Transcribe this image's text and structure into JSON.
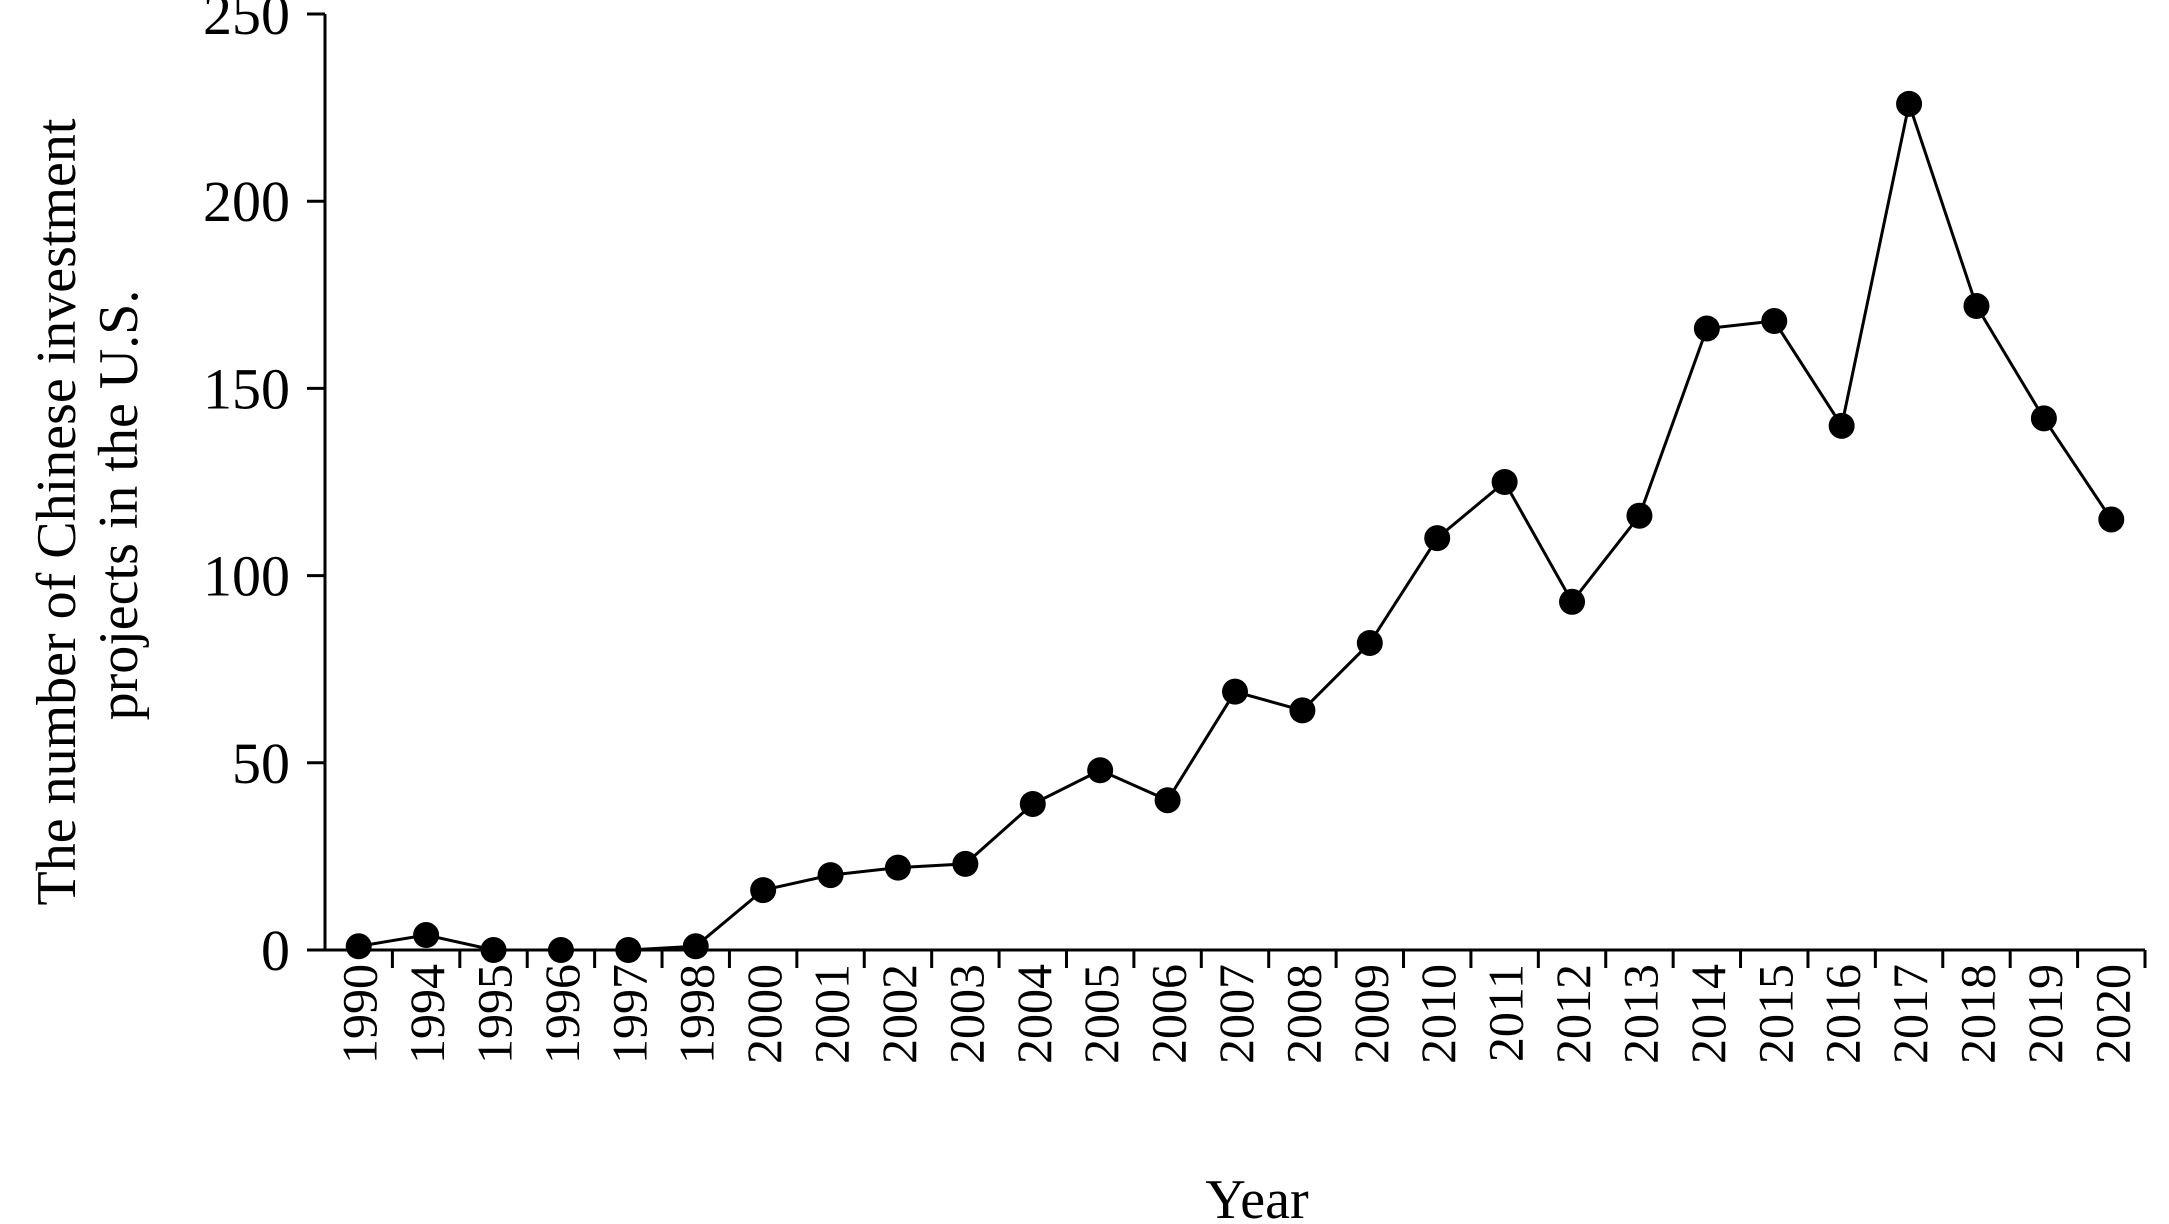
{
  "chart_data": {
    "type": "line",
    "title": "",
    "xlabel": "Year",
    "ylabel_lines": [
      "The number of Chinese investment",
      "projects in the U.S."
    ],
    "ylim": [
      0,
      250
    ],
    "yticks": [
      0,
      50,
      100,
      150,
      200,
      250
    ],
    "grid": false,
    "legend": "none",
    "marker": "circle",
    "colors": {
      "line": "#000000",
      "marker": "#000000"
    },
    "categories": [
      "1990",
      "1994",
      "1995",
      "1996",
      "1997",
      "1998",
      "2000",
      "2001",
      "2002",
      "2003",
      "2004",
      "2005",
      "2006",
      "2007",
      "2008",
      "2009",
      "2010",
      "2011",
      "2012",
      "2013",
      "2014",
      "2015",
      "2016",
      "2017",
      "2018",
      "2019",
      "2020"
    ],
    "series": [
      {
        "values": [
          1,
          4,
          0,
          0,
          0,
          1,
          16,
          20,
          22,
          23,
          39,
          48,
          40,
          69,
          64,
          82,
          110,
          125,
          93,
          116,
          166,
          168,
          140,
          226,
          172,
          142,
          115
        ]
      }
    ]
  }
}
